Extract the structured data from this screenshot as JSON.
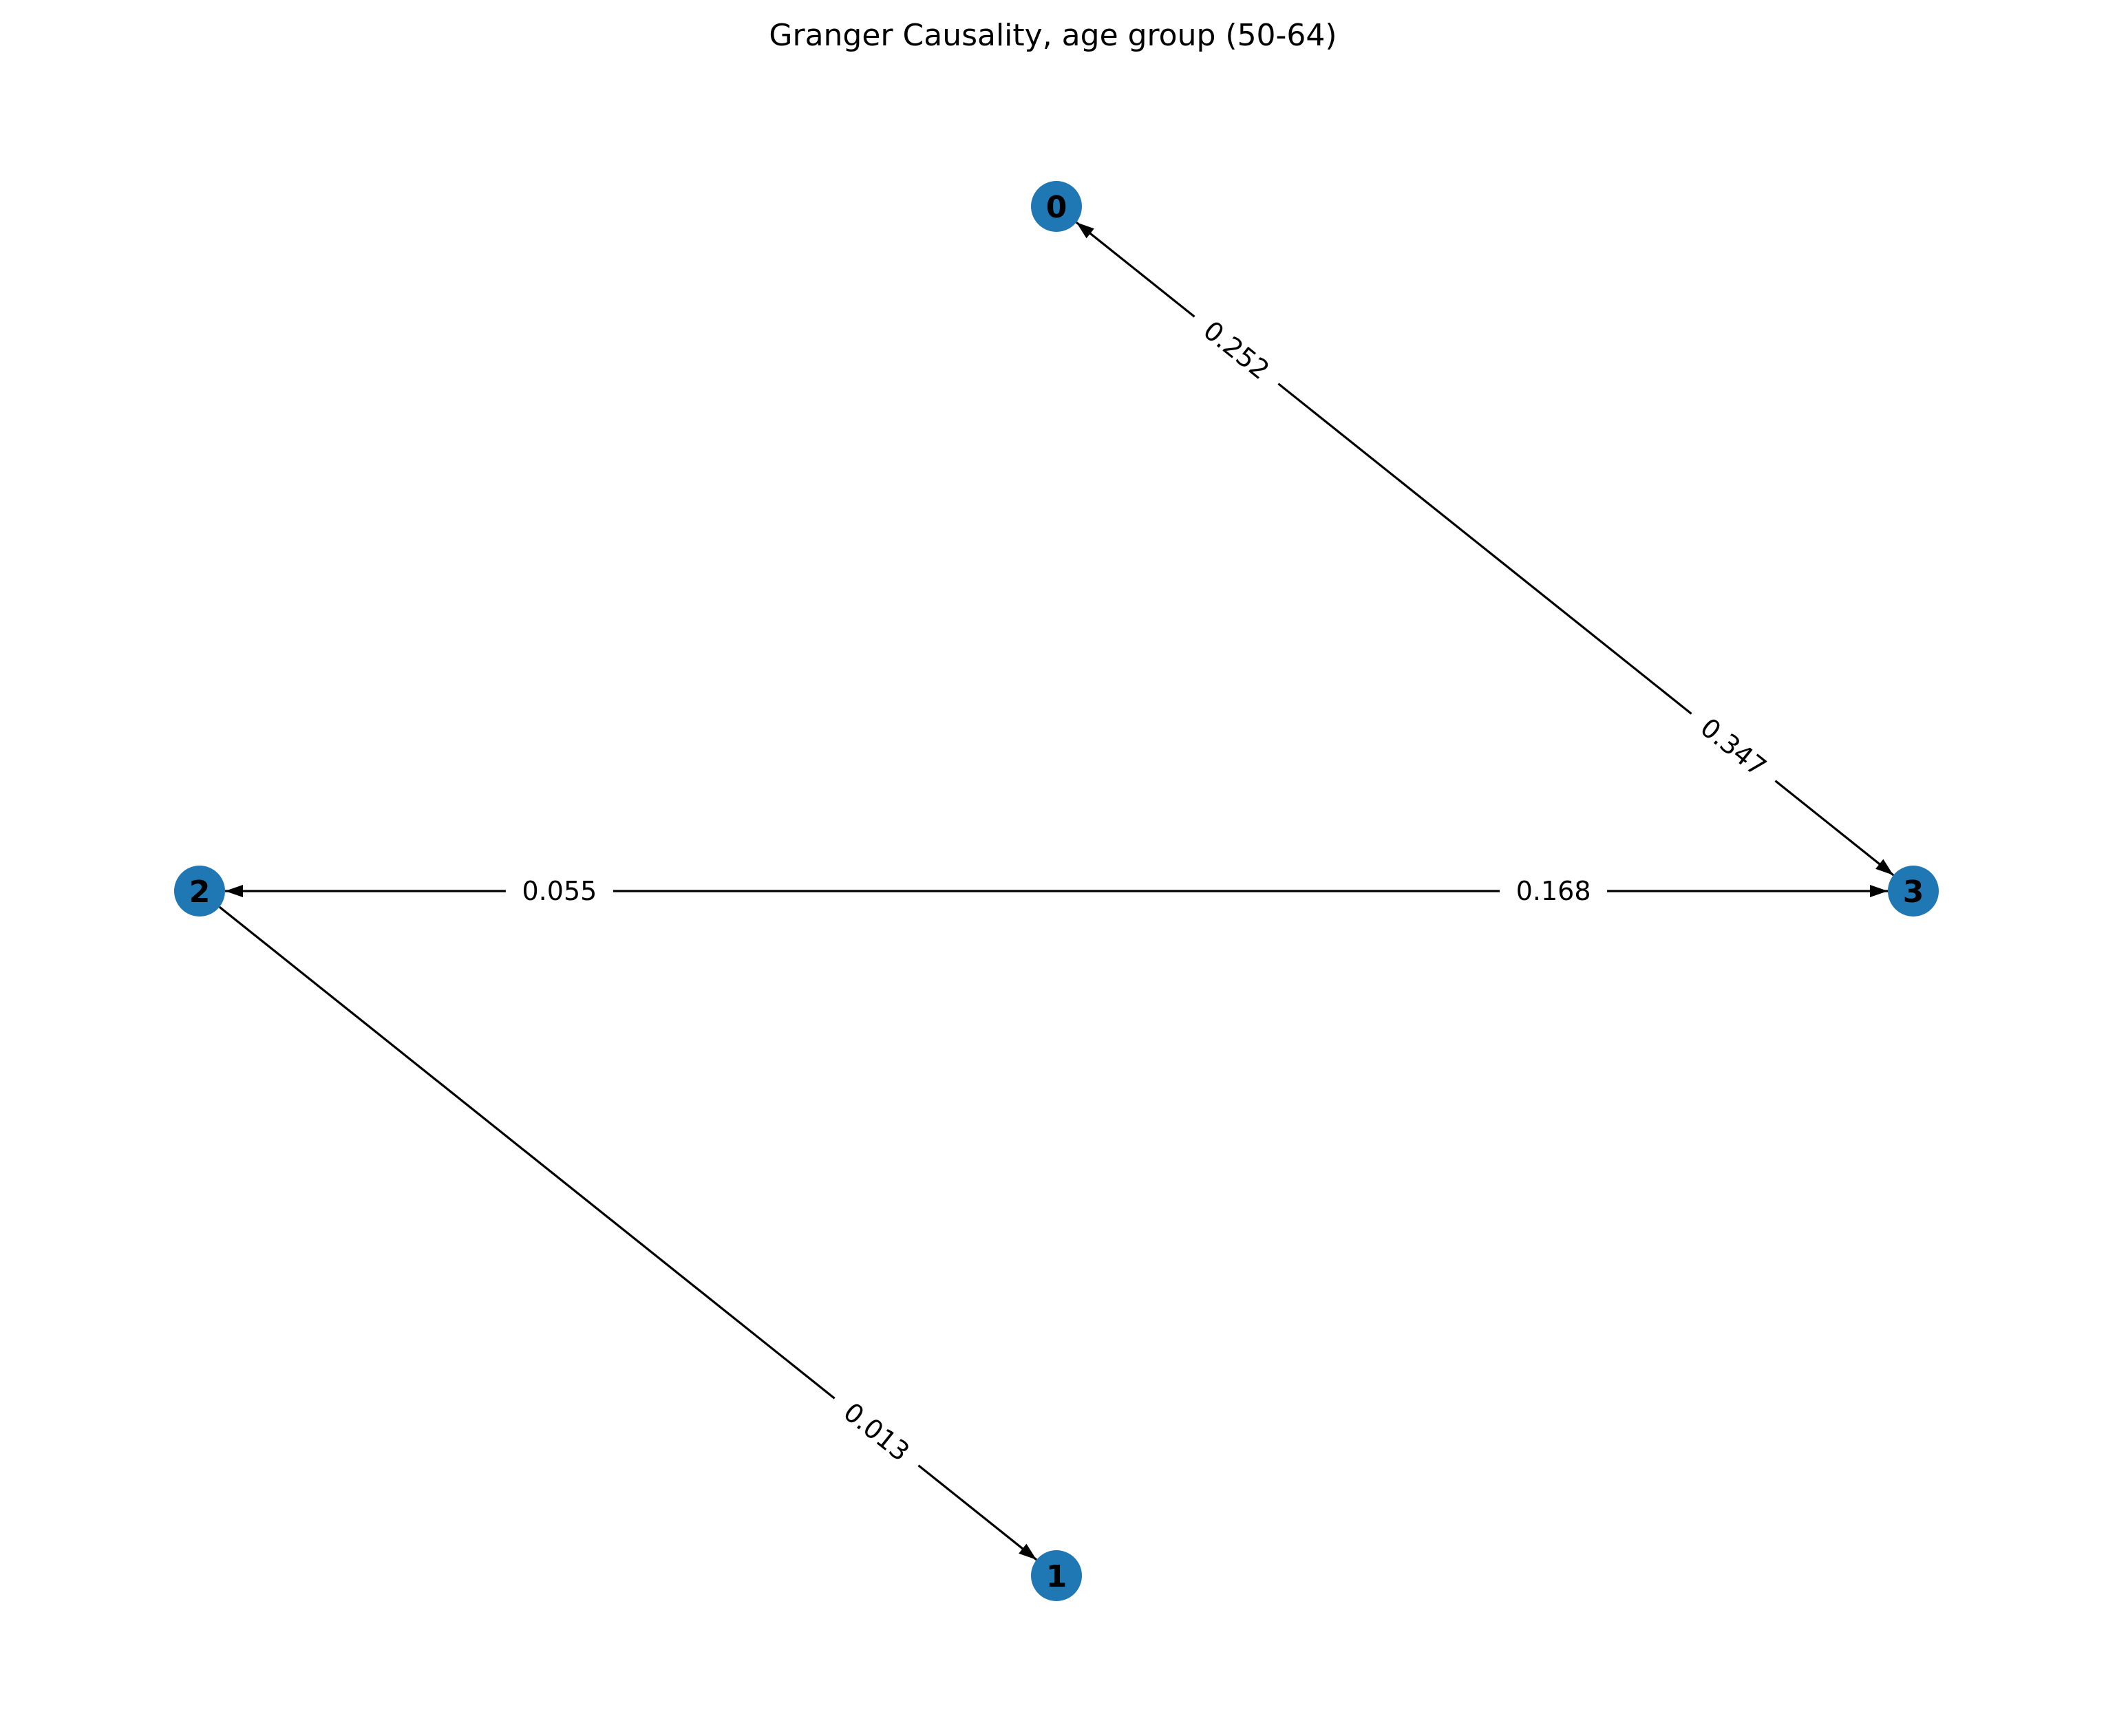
{
  "title": "Granger Causality, age group (50-64)",
  "colors": {
    "node_fill": "#1f77b4",
    "edge": "#000000",
    "label_text": "#000000",
    "background": "#ffffff"
  },
  "nodes": [
    {
      "id": "0",
      "label": "0"
    },
    {
      "id": "1",
      "label": "1"
    },
    {
      "id": "2",
      "label": "2"
    },
    {
      "id": "3",
      "label": "3"
    }
  ],
  "edges": [
    {
      "source": "3",
      "target": "0",
      "label": "0.252"
    },
    {
      "source": "0",
      "target": "3",
      "label": "0.347"
    },
    {
      "source": "3",
      "target": "2",
      "label": "0.055"
    },
    {
      "source": "2",
      "target": "3",
      "label": "0.168"
    },
    {
      "source": "2",
      "target": "1",
      "label": "0.013"
    }
  ]
}
